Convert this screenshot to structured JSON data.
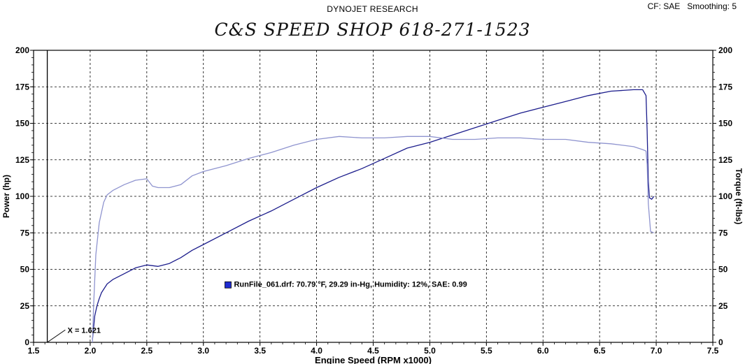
{
  "header": {
    "company": "DYNOJET RESEARCH",
    "settings": "CF: SAE   Smoothing: 5",
    "shop_title": "C&S SPEED SHOP 618-271-1523"
  },
  "run_info": {
    "label": "RunFile_061.drf: 70.79 °F, 29.29 in-Hg, Humidity: 12%, SAE: 0.99",
    "color": "#1f2bd1"
  },
  "cursor": {
    "label": "X = 1.621",
    "x": 1.621
  },
  "chart_data": {
    "type": "line",
    "title": "",
    "xlabel": "Engine Speed (RPM x1000)",
    "ylabel_left": "Power (hp)",
    "ylabel_right": "Torque (ft-lbs)",
    "xlim": [
      1.5,
      7.5
    ],
    "ylim": [
      0,
      200
    ],
    "y2lim": [
      0,
      200
    ],
    "x_ticks": [
      "1.5",
      "2.0",
      "2.5",
      "3.0",
      "3.5",
      "4.0",
      "4.5",
      "5.0",
      "5.5",
      "6.0",
      "6.5",
      "7.0",
      "7.5"
    ],
    "y_ticks": [
      "0",
      "25",
      "50",
      "75",
      "100",
      "125",
      "150",
      "175",
      "200"
    ],
    "grid": true,
    "series": [
      {
        "axis": "left",
        "color": "#1c1d8c",
        "x": [
          2.02,
          2.03,
          2.04,
          2.06,
          2.08,
          2.1,
          2.15,
          2.2,
          2.3,
          2.4,
          2.5,
          2.6,
          2.7,
          2.8,
          2.9,
          3.0,
          3.2,
          3.4,
          3.6,
          3.8,
          4.0,
          4.2,
          4.4,
          4.6,
          4.8,
          5.0,
          5.2,
          5.4,
          5.6,
          5.8,
          6.0,
          6.2,
          6.4,
          6.6,
          6.8,
          6.88,
          6.91,
          6.92,
          6.93,
          6.94,
          6.96,
          6.98
        ],
        "values": [
          2,
          10,
          18,
          25,
          30,
          34,
          40,
          43,
          47,
          51,
          53,
          52,
          54,
          58,
          63,
          67,
          75,
          83,
          90,
          98,
          106,
          113,
          119,
          126,
          133,
          137,
          142,
          147,
          152,
          157,
          161,
          165,
          169,
          172,
          173,
          173,
          169,
          145,
          110,
          99,
          98,
          100
        ]
      },
      {
        "axis": "right",
        "color": "#8f94cf",
        "x": [
          2.02,
          2.03,
          2.05,
          2.08,
          2.12,
          2.15,
          2.2,
          2.3,
          2.4,
          2.5,
          2.55,
          2.6,
          2.7,
          2.8,
          2.9,
          3.0,
          3.2,
          3.4,
          3.6,
          3.8,
          4.0,
          4.2,
          4.4,
          4.6,
          4.8,
          5.0,
          5.2,
          5.4,
          5.6,
          5.8,
          6.0,
          6.2,
          6.4,
          6.6,
          6.8,
          6.88,
          6.91,
          6.92,
          6.93,
          6.95,
          6.98
        ],
        "values": [
          0,
          25,
          60,
          82,
          96,
          101,
          104,
          108,
          111,
          112,
          107,
          106,
          106,
          108,
          114,
          117,
          121,
          126,
          130,
          135,
          139,
          141,
          140,
          140,
          141,
          141,
          139,
          139,
          140,
          140,
          139,
          139,
          137,
          136,
          134,
          132,
          131,
          122,
          95,
          76,
          75
        ]
      }
    ]
  }
}
